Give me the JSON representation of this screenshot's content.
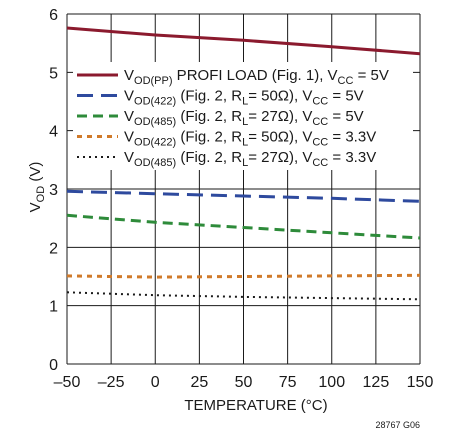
{
  "chart_data": {
    "type": "line",
    "xlabel": "TEMPERATURE (°C)",
    "ylabel_main": "V",
    "ylabel_sub": "OD",
    "ylabel_unit": " (V)",
    "xlim": [
      -50,
      150
    ],
    "ylim": [
      0,
      6
    ],
    "xticks": [
      -50,
      -25,
      0,
      25,
      50,
      75,
      100,
      125,
      150
    ],
    "xtick_labels": [
      "–50",
      "–25",
      "0",
      "25",
      "50",
      "75",
      "100",
      "125",
      "150"
    ],
    "yticks": [
      0,
      1,
      2,
      3,
      4,
      5,
      6
    ],
    "ytick_labels": [
      "0",
      "1",
      "2",
      "3",
      "4",
      "5",
      "6"
    ],
    "grid": true,
    "legend_position": "top-center",
    "figure_id": "28767 G06",
    "series": [
      {
        "legend": {
          "v": "V",
          "sub": "OD(PP)",
          "rest1": " PROFI LOAD (Fig. 1), V",
          "cc": "CC",
          "rest2": " = 5V"
        },
        "color": "#8b1a2e",
        "dash": "solid",
        "x": [
          -50,
          0,
          50,
          100,
          150
        ],
        "y": [
          5.76,
          5.64,
          5.55,
          5.44,
          5.32
        ]
      },
      {
        "legend": {
          "v": "V",
          "sub": "OD(422)",
          "rest1": " (Fig. 2, R",
          "rsub": "L",
          "rest2": "= 50Ω), V",
          "cc": "CC",
          "rest3": " = 5V"
        },
        "color": "#2e4a9e",
        "dash": "long",
        "x": [
          -50,
          0,
          50,
          100,
          150
        ],
        "y": [
          2.96,
          2.92,
          2.88,
          2.84,
          2.79
        ]
      },
      {
        "legend": {
          "v": "V",
          "sub": "OD(485)",
          "rest1": " (Fig. 2, R",
          "rsub": "L",
          "rest2": "= 27Ω), V",
          "cc": "CC",
          "rest3": " = 5V"
        },
        "color": "#2e8b3a",
        "dash": "medium",
        "x": [
          -50,
          0,
          50,
          100,
          150
        ],
        "y": [
          2.55,
          2.43,
          2.34,
          2.25,
          2.16
        ]
      },
      {
        "legend": {
          "v": "V",
          "sub": "OD(422)",
          "rest1": " (Fig. 2, R",
          "rsub": "L",
          "rest2": "= 50Ω), V",
          "cc": "CC",
          "rest3": " = 3.3V"
        },
        "color": "#d07a2a",
        "dash": "short",
        "x": [
          -50,
          0,
          50,
          100,
          150
        ],
        "y": [
          1.51,
          1.49,
          1.5,
          1.51,
          1.52
        ]
      },
      {
        "legend": {
          "v": "V",
          "sub": "OD(485)",
          "rest1": " (Fig. 2, R",
          "rsub": "L",
          "rest2": "= 27Ω), V",
          "cc": "CC",
          "rest3": " = 3.3V"
        },
        "color": "#1a1a1a",
        "dash": "dot",
        "x": [
          -50,
          0,
          50,
          100,
          150
        ],
        "y": [
          1.23,
          1.18,
          1.15,
          1.13,
          1.11
        ]
      }
    ]
  }
}
